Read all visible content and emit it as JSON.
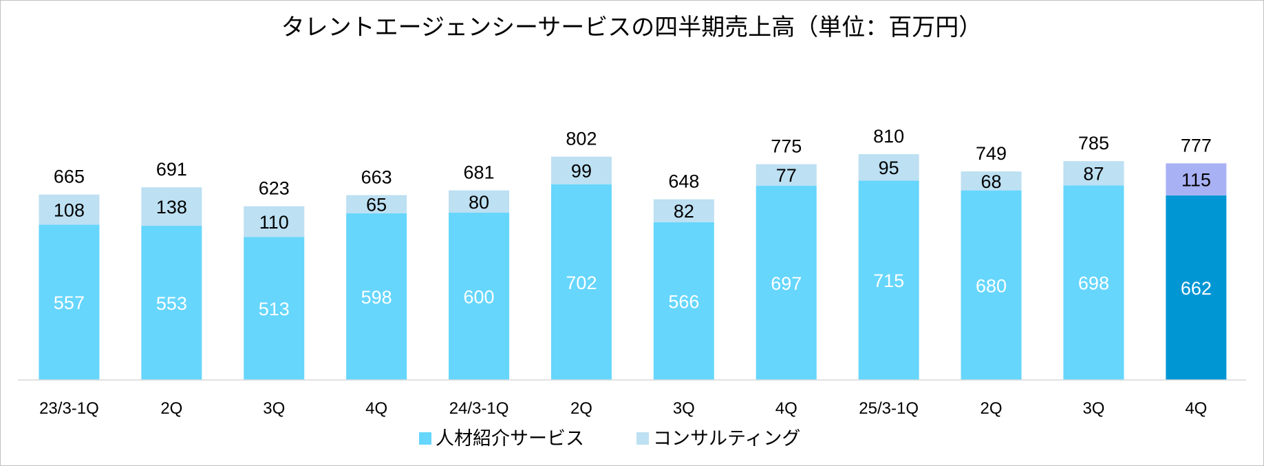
{
  "chart_data": {
    "type": "bar",
    "stacked": true,
    "title": "タレントエージェンシーサービスの四半期売上高（単位：百万円）",
    "categories": [
      "23/3-1Q",
      "2Q",
      "3Q",
      "4Q",
      "24/3-1Q",
      "2Q",
      "3Q",
      "4Q",
      "25/3-1Q",
      "2Q",
      "3Q",
      "4Q"
    ],
    "series": [
      {
        "name": "人材紹介サービス",
        "values": [
          557,
          553,
          513,
          598,
          600,
          702,
          566,
          697,
          715,
          680,
          698,
          662
        ],
        "color": "#66d6fd",
        "highlight_color": "#0096d4"
      },
      {
        "name": "コンサルティング",
        "values": [
          108,
          138,
          110,
          65,
          80,
          99,
          82,
          77,
          95,
          68,
          87,
          115
        ],
        "color": "#bde0f2",
        "highlight_color": "#a9b1f5"
      }
    ],
    "totals": [
      665,
      691,
      623,
      663,
      681,
      802,
      648,
      775,
      810,
      749,
      785,
      777
    ],
    "highlight_index": 11,
    "ylim": [
      0,
      1000
    ],
    "grid": false,
    "legend": "bottom"
  }
}
